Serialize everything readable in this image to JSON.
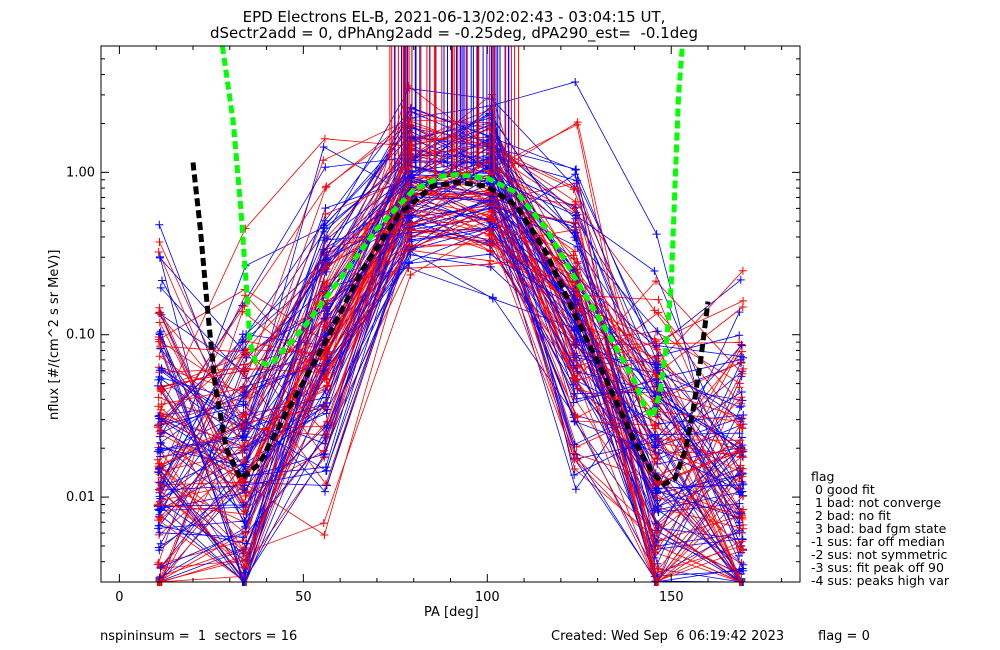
{
  "title_line1": "EPD Electrons EL-B, 2021-06-13/02:02:43 - 03:04:15 UT,",
  "title_line2": "dSectr2add = 0, dPhAng2add = -0.25deg, dPA290_est=  -0.1deg",
  "footer": {
    "left": "nspininsum =  1  sectors = 16",
    "created": "Created: Wed Sep  6 06:19:42 2023",
    "flag": "flag = 0"
  },
  "legend": {
    "title": "flag",
    "items": [
      " 0 good fit",
      " 1 bad: not converge",
      " 2 bad: no fit",
      " 3 bad: bad fgm state",
      "-1 sus: far off median",
      "-2 sus: not symmetric",
      "-3 sus: fit peak off 90",
      "-4 sus: peaks high var"
    ]
  },
  "colors": {
    "red": "#ff0000",
    "blue": "#0000ff",
    "green": "#00ff00",
    "black": "#000000"
  },
  "chart_data": {
    "type": "line",
    "xlabel": "PA [deg]",
    "ylabel": "nflux [#/(cm^2 s sr MeV)]",
    "xlim": [
      -5,
      185
    ],
    "ylim": [
      0.003,
      6.0
    ],
    "yscale": "log",
    "x_ticks": [
      0,
      50,
      100,
      150
    ],
    "y_ticks": [
      0.01,
      0.1,
      1.0
    ],
    "y_tick_labels": [
      "0.01",
      "0.10",
      "1.00"
    ],
    "pa_sectors": [
      11,
      34,
      56,
      79,
      101,
      124,
      146,
      169
    ],
    "fit_curves": [
      {
        "color": "#00ff00",
        "points": [
          [
            28,
            6.0
          ],
          [
            31,
            2.0
          ],
          [
            33,
            0.6
          ],
          [
            34.5,
            0.2
          ],
          [
            35.5,
            0.09
          ],
          [
            37,
            0.068
          ],
          [
            41,
            0.065
          ],
          [
            50,
            0.11
          ],
          [
            60,
            0.22
          ],
          [
            70,
            0.45
          ],
          [
            80,
            0.78
          ],
          [
            88,
            0.95
          ],
          [
            92,
            0.97
          ],
          [
            100,
            0.92
          ],
          [
            108,
            0.75
          ],
          [
            116,
            0.45
          ],
          [
            124,
            0.22
          ],
          [
            132,
            0.11
          ],
          [
            140,
            0.052
          ],
          [
            143,
            0.035
          ],
          [
            145,
            0.031
          ],
          [
            147,
            0.045
          ],
          [
            148.5,
            0.08
          ],
          [
            150,
            0.2
          ],
          [
            151,
            0.8
          ],
          [
            152,
            3.0
          ],
          [
            153,
            6.0
          ]
        ]
      },
      {
        "color": "#000000",
        "points": [
          [
            20,
            1.15
          ],
          [
            22,
            0.45
          ],
          [
            24,
            0.14
          ],
          [
            26,
            0.05
          ],
          [
            29,
            0.02
          ],
          [
            33,
            0.013
          ],
          [
            38,
            0.016
          ],
          [
            46,
            0.035
          ],
          [
            56,
            0.09
          ],
          [
            66,
            0.25
          ],
          [
            76,
            0.55
          ],
          [
            85,
            0.82
          ],
          [
            92,
            0.87
          ],
          [
            100,
            0.82
          ],
          [
            108,
            0.62
          ],
          [
            116,
            0.32
          ],
          [
            124,
            0.13
          ],
          [
            132,
            0.055
          ],
          [
            140,
            0.022
          ],
          [
            145,
            0.014
          ],
          [
            148,
            0.012
          ],
          [
            151,
            0.013
          ],
          [
            154,
            0.02
          ],
          [
            156,
            0.035
          ],
          [
            158,
            0.07
          ],
          [
            160,
            0.16
          ]
        ]
      }
    ]
  }
}
